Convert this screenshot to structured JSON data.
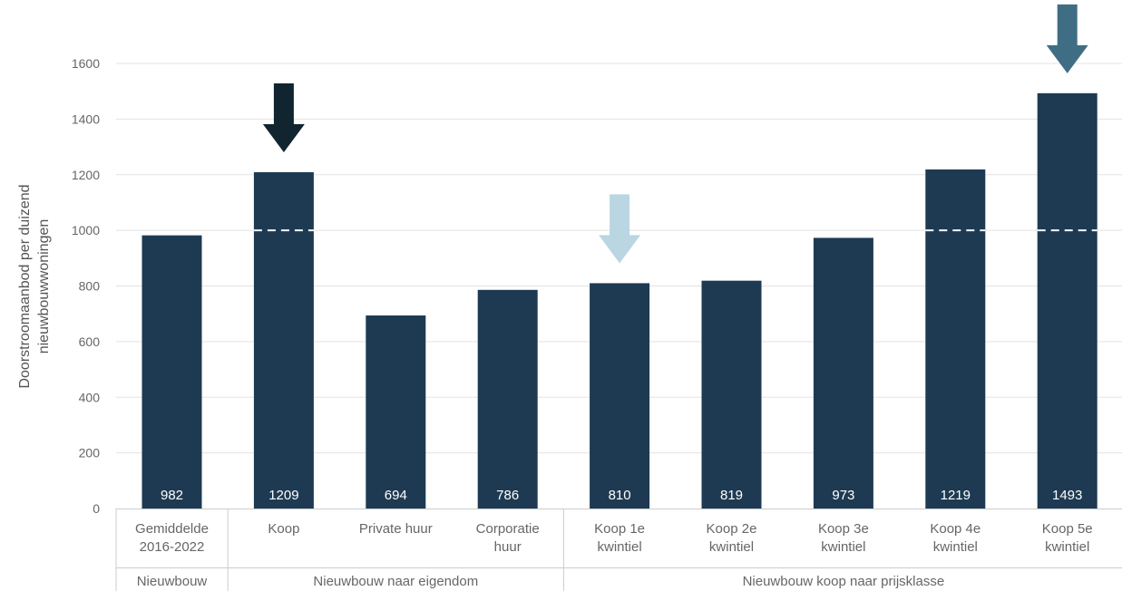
{
  "chart_data": {
    "type": "bar",
    "ylabel_lines": [
      "Doorstroomaanbod per duizend",
      "nieuwbouwwoningen"
    ],
    "ylim": [
      0,
      1600
    ],
    "yticks": [
      0,
      200,
      400,
      600,
      800,
      1000,
      1200,
      1400,
      1600
    ],
    "grid": true,
    "reference_value": 1000,
    "bar_color": "#1e3a52",
    "categories": [
      [
        "Gemiddelde",
        "2016-2022"
      ],
      [
        "Koop"
      ],
      [
        "Private huur"
      ],
      [
        "Corporatie",
        "huur"
      ],
      [
        "Koop 1e",
        "kwintiel"
      ],
      [
        "Koop  2e",
        "kwintiel"
      ],
      [
        "Koop 3e",
        "kwintiel"
      ],
      [
        "Koop 4e",
        "kwintiel"
      ],
      [
        "Koop 5e",
        "kwintiel"
      ]
    ],
    "values": [
      982,
      1209,
      694,
      786,
      810,
      819,
      973,
      1219,
      1493
    ],
    "value_labels": [
      "982",
      "1209",
      "694",
      "786",
      "810",
      "819",
      "973",
      "1219",
      "1493"
    ],
    "reference_line_bars": [
      1,
      7,
      8
    ],
    "groups": [
      {
        "label": "Nieuwbouw",
        "start": 0,
        "end": 0
      },
      {
        "label": "Nieuwbouw naar eigendom",
        "start": 1,
        "end": 3
      },
      {
        "label": "Nieuwbouw koop naar prijsklasse",
        "start": 4,
        "end": 8
      }
    ],
    "arrows": [
      {
        "bar": 1,
        "color": "#10252f"
      },
      {
        "bar": 4,
        "color": "#b9d6e2"
      },
      {
        "bar": 8,
        "color": "#3f6e84"
      }
    ]
  }
}
